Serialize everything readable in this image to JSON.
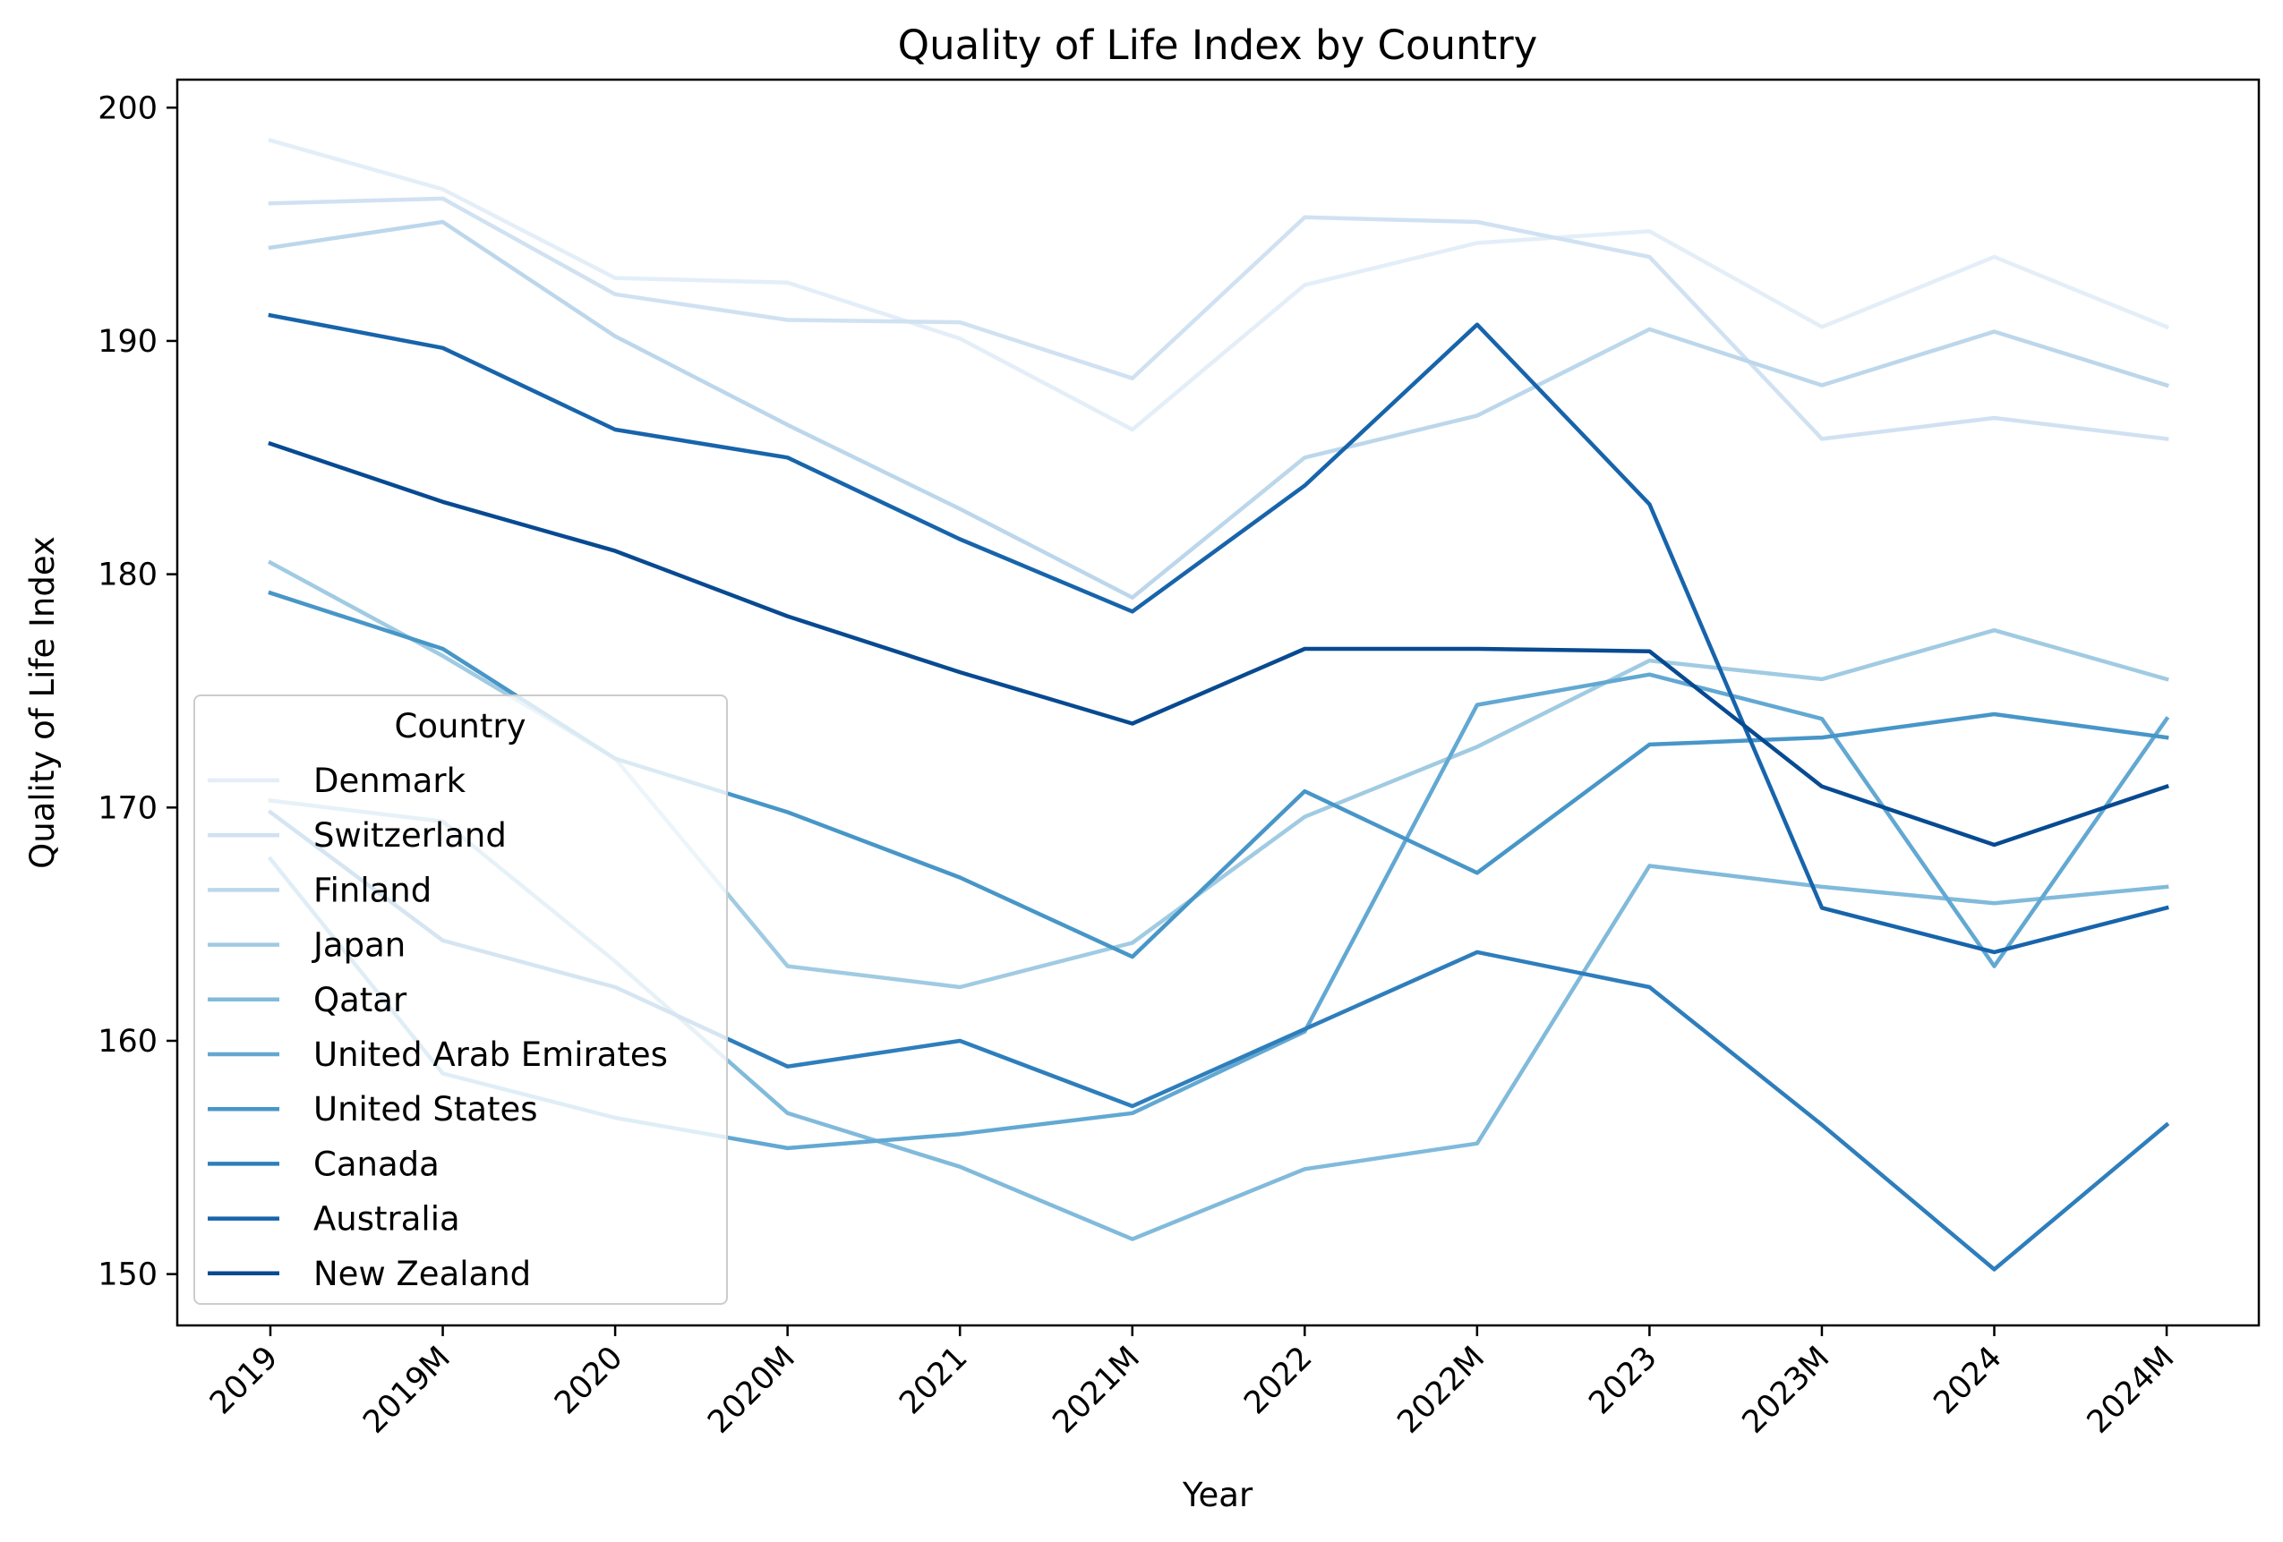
{
  "chart_data": {
    "type": "line",
    "title": "Quality of Life Index by Country",
    "xlabel": "Year",
    "ylabel": "Quality of Life Index",
    "x": [
      "2019",
      "2019M",
      "2020",
      "2020M",
      "2021",
      "2021M",
      "2022",
      "2022M",
      "2023",
      "2023M",
      "2024",
      "2024M"
    ],
    "ylim": [
      147.8,
      201.2
    ],
    "yticks": [
      "150",
      "160",
      "170",
      "180",
      "190",
      "200"
    ],
    "grid": false,
    "legend": {
      "title": "Country",
      "position": "lower-left"
    },
    "series": [
      {
        "name": "Denmark",
        "color": "#e3eef8",
        "values": [
          198.6,
          196.5,
          192.7,
          192.5,
          190.1,
          186.2,
          192.4,
          194.2,
          194.7,
          190.6,
          193.6,
          190.6
        ]
      },
      {
        "name": "Switzerland",
        "color": "#d0e1f2",
        "values": [
          195.9,
          196.1,
          192.0,
          190.9,
          190.8,
          188.4,
          195.3,
          195.1,
          193.6,
          185.8,
          186.7,
          185.8
        ]
      },
      {
        "name": "Finland",
        "color": "#bcd7eb",
        "values": [
          194.0,
          195.1,
          190.2,
          186.4,
          182.8,
          179.0,
          185.0,
          186.8,
          190.5,
          188.1,
          190.4,
          188.1
        ]
      },
      {
        "name": "Japan",
        "color": "#a0cbe2",
        "values": [
          180.5,
          176.5,
          172.1,
          163.2,
          162.3,
          164.2,
          169.6,
          172.6,
          176.3,
          175.5,
          177.6,
          175.5
        ]
      },
      {
        "name": "Qatar",
        "color": "#81badb",
        "values": [
          170.3,
          169.4,
          163.4,
          156.9,
          154.6,
          151.5,
          154.5,
          155.6,
          167.5,
          166.6,
          165.9,
          166.6
        ]
      },
      {
        "name": "United Arab Emirates",
        "color": "#62a8d2",
        "values": [
          167.8,
          158.6,
          156.7,
          155.4,
          156.0,
          156.9,
          160.4,
          174.4,
          175.7,
          173.8,
          163.2,
          173.8
        ]
      },
      {
        "name": "United States",
        "color": "#4896c8",
        "values": [
          179.2,
          176.8,
          172.1,
          169.8,
          167.0,
          163.6,
          170.7,
          167.2,
          172.7,
          173.0,
          174.0,
          173.0
        ]
      },
      {
        "name": "Canada",
        "color": "#2e7ebc",
        "values": [
          169.8,
          164.3,
          162.3,
          158.9,
          160.0,
          157.2,
          160.5,
          163.8,
          162.3,
          156.4,
          150.2,
          156.4
        ]
      },
      {
        "name": "Australia",
        "color": "#1764ab",
        "values": [
          191.1,
          189.7,
          186.2,
          185.0,
          181.5,
          178.4,
          183.8,
          190.7,
          183.0,
          165.7,
          163.8,
          165.7
        ]
      },
      {
        "name": "New Zealand",
        "color": "#084a91",
        "values": [
          185.6,
          183.1,
          181.0,
          178.2,
          175.8,
          173.6,
          176.8,
          176.8,
          176.7,
          170.9,
          168.4,
          170.9
        ]
      }
    ]
  }
}
